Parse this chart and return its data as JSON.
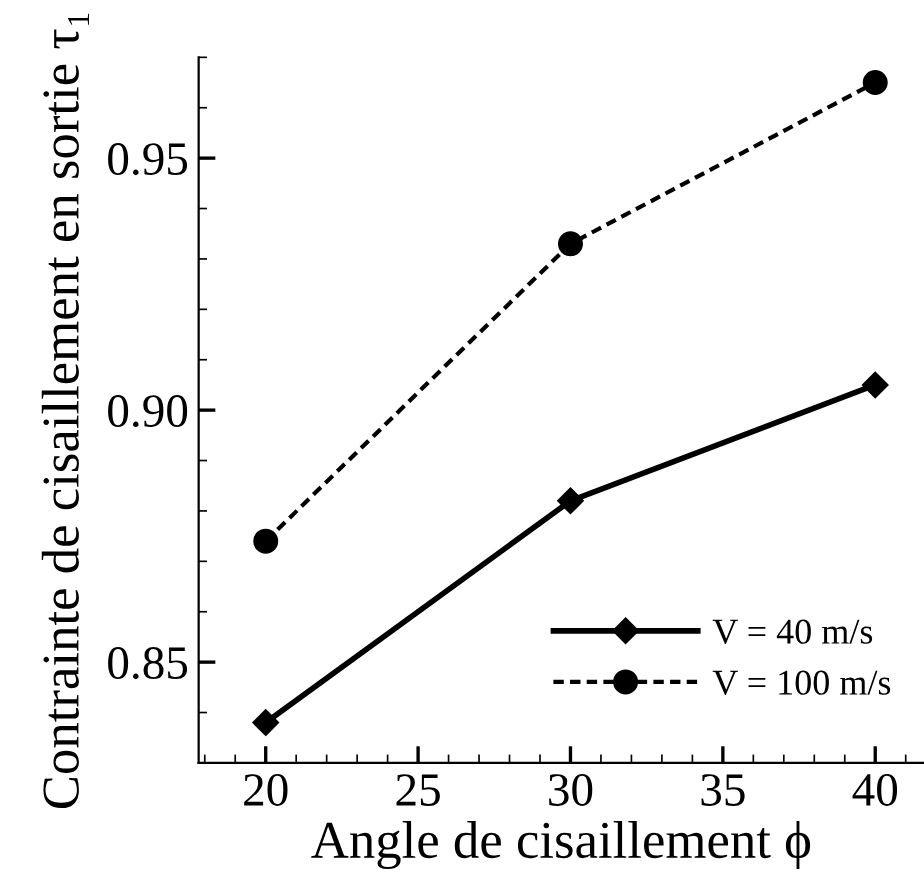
{
  "chart_data": {
    "type": "line",
    "xlabel": "Angle de cisaillement ϕ",
    "ylabel": "Contrainte de cisaillement en sortie τ₁",
    "x": [
      20,
      30,
      40
    ],
    "series": [
      {
        "name": "V = 40 m/s",
        "color": "#000000",
        "values": [
          0.838,
          0.882,
          0.905
        ],
        "marker": "diamond",
        "line_style": "solid"
      },
      {
        "name": "V = 100 m/s",
        "color": "#000000",
        "values": [
          0.874,
          0.933,
          0.965
        ],
        "marker": "circle",
        "line_style": "dashed"
      }
    ],
    "xlim": [
      17.8,
      41.6
    ],
    "xticks": [
      20,
      25,
      30,
      35,
      40
    ],
    "ylim": [
      0.83,
      0.97
    ],
    "yticks": [
      {
        "value": 0.85,
        "label": "0.85"
      },
      {
        "value": 0.9,
        "label": "0.90"
      },
      {
        "value": 0.95,
        "label": "0.95"
      }
    ],
    "grid": false,
    "legend": "bottom right"
  }
}
